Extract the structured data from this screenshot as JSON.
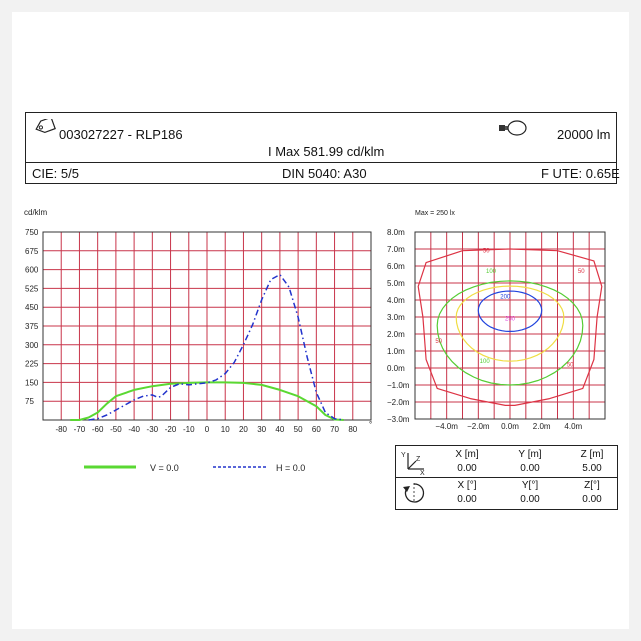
{
  "header": {
    "product": "003027227 - RLP186",
    "lumens": "20000 lm",
    "imax": "I Max 581.99 cd/klm",
    "cie": "CIE: 5/5",
    "din": "DIN 5040: A30",
    "fute": "F UTE: 0.65E",
    "icons": [
      "tag-icon",
      "lamp-icon"
    ]
  },
  "chart_data": [
    {
      "type": "line",
      "ylabel": "cd/klm",
      "xlabel": "",
      "x_unit": "°",
      "xlim": [
        -90,
        90
      ],
      "ylim": [
        0,
        750
      ],
      "x_ticks": [
        -80,
        -70,
        -60,
        -50,
        -40,
        -30,
        -20,
        -10,
        0,
        10,
        20,
        30,
        40,
        50,
        60,
        70,
        80
      ],
      "y_ticks": [
        75,
        150,
        225,
        300,
        375,
        450,
        525,
        600,
        675,
        750
      ],
      "grid": true,
      "legend_position": "bottom",
      "series": [
        {
          "name": "V = 0.0",
          "color": "#5ad832",
          "style": "solid",
          "x": [
            -75,
            -70,
            -65,
            -60,
            -55,
            -50,
            -40,
            -30,
            -20,
            -10,
            0,
            10,
            20,
            30,
            40,
            50,
            60,
            65,
            70,
            75
          ],
          "values": [
            0,
            0,
            10,
            30,
            65,
            95,
            120,
            135,
            145,
            148,
            150,
            150,
            148,
            140,
            120,
            95,
            55,
            20,
            2,
            0
          ]
        },
        {
          "name": "H = 0.0",
          "color": "#2233cc",
          "style": "dashdot",
          "x": [
            -65,
            -60,
            -55,
            -50,
            -45,
            -40,
            -35,
            -30,
            -27,
            -25,
            -20,
            -15,
            -10,
            -5,
            0,
            5,
            10,
            15,
            20,
            25,
            30,
            35,
            40,
            45,
            50,
            55,
            60,
            65,
            70,
            75
          ],
          "values": [
            0,
            5,
            20,
            40,
            60,
            80,
            95,
            100,
            90,
            95,
            130,
            145,
            140,
            145,
            148,
            160,
            185,
            230,
            300,
            380,
            480,
            560,
            580,
            530,
            410,
            250,
            110,
            30,
            5,
            0
          ]
        }
      ]
    },
    {
      "type": "contour",
      "title": "Max = 250 lx",
      "x_ticks": [
        "−4.0m",
        "−2.0m",
        "0.0m",
        "2.0m",
        "4.0m"
      ],
      "y_ticks": [
        "8.0m",
        "7.0m",
        "6.0m",
        "5.0m",
        "4.0m",
        "3.0m",
        "2.0m",
        "1.0m",
        "0.0m",
        "−1.0m",
        "−2.0m",
        "−3.0m"
      ],
      "xlim": [
        -6,
        6
      ],
      "ylim": [
        -3,
        8
      ],
      "grid": true,
      "levels": [
        {
          "value": 50,
          "color": "#dd3344"
        },
        {
          "value": 100,
          "color": "#55cc33"
        },
        {
          "value": 150,
          "color": "#f0dd44"
        },
        {
          "value": 200,
          "color": "#2244dd"
        },
        {
          "value": 250,
          "color": "#dd44dd"
        }
      ],
      "contour_labels": [
        "50",
        "50",
        "50",
        "50",
        "100",
        "100",
        "200",
        "250"
      ]
    }
  ],
  "position_table": {
    "row1": {
      "headers": [
        "X [m]",
        "Y [m]",
        "Z [m]"
      ],
      "values": [
        "0.00",
        "0.00",
        "5.00"
      ]
    },
    "row2": {
      "headers": [
        "X [°]",
        "Y[°]",
        "Z[°]"
      ],
      "values": [
        "0.00",
        "0.00",
        "0.00"
      ]
    },
    "axes_labels": [
      "Y",
      "Z",
      "X"
    ]
  }
}
